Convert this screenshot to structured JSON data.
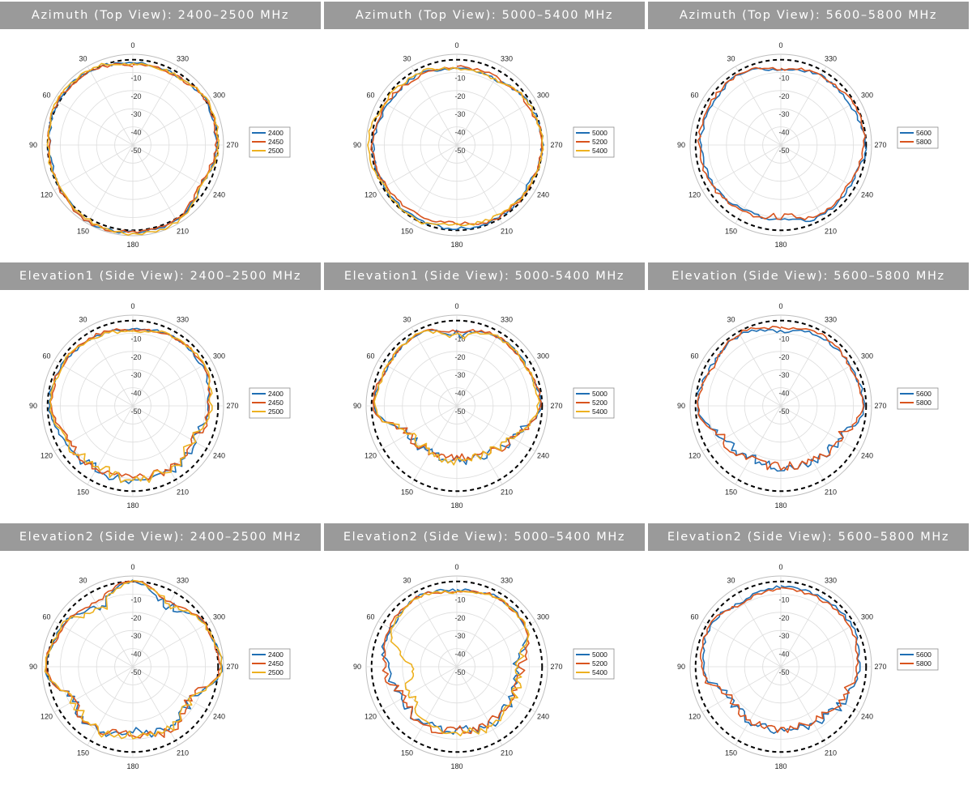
{
  "colors": {
    "accent_blue": "#1f6fb4",
    "accent_orange": "#d9541e",
    "accent_yellow": "#edb120",
    "reference": "#000000",
    "banner": "#9a9a9a",
    "grid": "#dddddd"
  },
  "angle_labels": [
    "0",
    "30",
    "60",
    "90",
    "120",
    "150",
    "180",
    "210",
    "240",
    "270",
    "300",
    "330"
  ],
  "radial_labels": [
    "-10",
    "-20",
    "-30",
    "-40",
    "-50"
  ],
  "chart_data": [
    {
      "type": "polar",
      "title": "Azimuth (Top View): 2400–2500 MHz",
      "rlim": [
        -50,
        0
      ],
      "angle_step_deg": 30,
      "grid": true,
      "legend_position": "right",
      "reference_circle_db": -3,
      "angles_deg": [
        0,
        30,
        60,
        90,
        120,
        150,
        180,
        210,
        240,
        270,
        300,
        330
      ],
      "series": [
        {
          "name": "2400",
          "values": [
            -5,
            -3,
            -2,
            -4,
            -4,
            -1,
            -2,
            -2,
            -6,
            -4,
            -3,
            -5
          ]
        },
        {
          "name": "2450",
          "values": [
            -6,
            -3,
            -2,
            -4,
            -3,
            -1,
            -2,
            -3,
            -7,
            -4,
            -3,
            -5
          ]
        },
        {
          "name": "2500",
          "values": [
            -5,
            -2,
            -2,
            -3,
            -3,
            -2,
            -1,
            -1,
            -6,
            -3,
            -2,
            -5
          ]
        }
      ]
    },
    {
      "type": "polar",
      "title": "Azimuth (Top View): 5000–5400 MHz",
      "rlim": [
        -50,
        0
      ],
      "angle_step_deg": 30,
      "grid": true,
      "legend_position": "right",
      "reference_circle_db": -3,
      "angles_deg": [
        0,
        30,
        60,
        90,
        120,
        150,
        180,
        210,
        240,
        270,
        300,
        330
      ],
      "series": [
        {
          "name": "5000",
          "values": [
            -8,
            -6,
            -6,
            -4,
            -4,
            -4,
            -4,
            -4,
            -5,
            -3,
            -4,
            -8
          ]
        },
        {
          "name": "5200",
          "values": [
            -7,
            -7,
            -5,
            -3,
            -5,
            -6,
            -7,
            -4,
            -4,
            -3,
            -5,
            -7
          ]
        },
        {
          "name": "5400",
          "values": [
            -8,
            -5,
            -4,
            -1,
            -4,
            -3,
            -6,
            -5,
            -4,
            -3,
            -4,
            -8
          ]
        }
      ]
    },
    {
      "type": "polar",
      "title": "Azimuth (Top View): 5600–5800 MHz",
      "rlim": [
        -50,
        0
      ],
      "angle_step_deg": 30,
      "grid": true,
      "legend_position": "right",
      "reference_circle_db": -3,
      "angles_deg": [
        0,
        30,
        60,
        90,
        120,
        150,
        180,
        210,
        240,
        270,
        300,
        330
      ],
      "series": [
        {
          "name": "5600",
          "values": [
            -9,
            -5,
            -6,
            -6,
            -7,
            -9,
            -9,
            -5,
            -6,
            -3,
            -6,
            -6
          ]
        },
        {
          "name": "5800",
          "values": [
            -8,
            -5,
            -5,
            -5,
            -6,
            -8,
            -10,
            -6,
            -7,
            -4,
            -4,
            -6
          ]
        }
      ]
    },
    {
      "type": "polar",
      "title": "Elevation1 (Side View): 2400–2500 MHz",
      "rlim": [
        -50,
        0
      ],
      "angle_step_deg": 30,
      "grid": true,
      "legend_position": "right",
      "reference_circle_db": -3,
      "angles_deg": [
        0,
        30,
        60,
        90,
        120,
        150,
        180,
        210,
        240,
        270,
        300,
        330
      ],
      "series": [
        {
          "name": "2400",
          "values": [
            -8,
            -7,
            -5,
            -4,
            -8,
            -10,
            -9,
            -9,
            -11,
            -8,
            -6,
            -6
          ]
        },
        {
          "name": "2450",
          "values": [
            -8,
            -6,
            -5,
            -5,
            -10,
            -11,
            -10,
            -10,
            -12,
            -8,
            -5,
            -6
          ]
        },
        {
          "name": "2500",
          "values": [
            -9,
            -7,
            -5,
            -5,
            -9,
            -12,
            -9,
            -10,
            -12,
            -7,
            -5,
            -6
          ]
        }
      ]
    },
    {
      "type": "polar",
      "title": "Elevation1 (Side View): 5000-5400 MHz",
      "rlim": [
        -50,
        0
      ],
      "angle_step_deg": 30,
      "grid": true,
      "legend_position": "right",
      "reference_circle_db": -3,
      "angles_deg": [
        0,
        30,
        60,
        90,
        120,
        150,
        180,
        210,
        240,
        270,
        300,
        330
      ],
      "series": [
        {
          "name": "5000",
          "values": [
            -10,
            -5,
            -6,
            -4,
            -20,
            -20,
            -20,
            -19,
            -15,
            -4,
            -6,
            -6
          ]
        },
        {
          "name": "5200",
          "values": [
            -9,
            -5,
            -6,
            -4,
            -19,
            -21,
            -21,
            -19,
            -14,
            -4,
            -6,
            -6
          ]
        },
        {
          "name": "5400",
          "values": [
            -11,
            -5,
            -6,
            -5,
            -21,
            -21,
            -20,
            -20,
            -15,
            -5,
            -6,
            -6
          ]
        }
      ]
    },
    {
      "type": "polar",
      "title": "Elevation (Side View): 5600–5800 MHz",
      "rlim": [
        -50,
        0
      ],
      "angle_step_deg": 30,
      "grid": true,
      "legend_position": "right",
      "reference_circle_db": -3,
      "angles_deg": [
        0,
        30,
        60,
        90,
        120,
        150,
        180,
        210,
        240,
        270,
        300,
        330
      ],
      "series": [
        {
          "name": "5600",
          "values": [
            -9,
            -5,
            -6,
            -4,
            -14,
            -17,
            -16,
            -15,
            -13,
            -4,
            -6,
            -6
          ]
        },
        {
          "name": "5800",
          "values": [
            -7,
            -4,
            -7,
            -4,
            -13,
            -16,
            -17,
            -15,
            -14,
            -5,
            -6,
            -5
          ]
        }
      ]
    },
    {
      "type": "polar",
      "title": "Elevation2 (Side View): 2400–2500 MHz",
      "rlim": [
        -50,
        0
      ],
      "angle_step_deg": 30,
      "grid": true,
      "legend_position": "right",
      "reference_circle_db": -3,
      "angles_deg": [
        0,
        30,
        60,
        90,
        120,
        150,
        180,
        210,
        240,
        270,
        300,
        330
      ],
      "series": [
        {
          "name": "2400",
          "values": [
            -3,
            -12,
            -5,
            -2,
            -12,
            -10,
            -14,
            -11,
            -13,
            -1,
            -4,
            -11
          ]
        },
        {
          "name": "2450",
          "values": [
            -3,
            -9,
            -6,
            -2,
            -12,
            -10,
            -13,
            -9,
            -14,
            -2,
            -4,
            -9
          ]
        },
        {
          "name": "2500",
          "values": [
            -3,
            -14,
            -5,
            -2,
            -12,
            -10,
            -12,
            -10,
            -14,
            -1,
            -4,
            -10
          ]
        }
      ]
    },
    {
      "type": "polar",
      "title": "Elevation2 (Side View): 5000–5400 MHz",
      "rlim": [
        -50,
        0
      ],
      "angle_step_deg": 30,
      "grid": true,
      "legend_position": "right",
      "reference_circle_db": -3,
      "angles_deg": [
        0,
        30,
        60,
        90,
        120,
        150,
        180,
        210,
        240,
        270,
        300,
        330
      ],
      "series": [
        {
          "name": "5000",
          "values": [
            -8,
            -6,
            -8,
            -11,
            -15,
            -14,
            -15,
            -13,
            -15,
            -17,
            -6,
            -6
          ]
        },
        {
          "name": "5200",
          "values": [
            -9,
            -6,
            -7,
            -10,
            -16,
            -13,
            -15,
            -14,
            -15,
            -14,
            -6,
            -6
          ]
        },
        {
          "name": "5400",
          "values": [
            -9,
            -6,
            -8,
            -25,
            -21,
            -15,
            -14,
            -12,
            -14,
            -16,
            -6,
            -6
          ]
        }
      ]
    },
    {
      "type": "polar",
      "title": "Elevation2 (Side View): 5600–5800 MHz",
      "rlim": [
        -50,
        0
      ],
      "angle_step_deg": 30,
      "grid": true,
      "legend_position": "right",
      "reference_circle_db": -3,
      "angles_deg": [
        0,
        30,
        60,
        90,
        120,
        150,
        180,
        210,
        240,
        270,
        300,
        330
      ],
      "series": [
        {
          "name": "5600",
          "values": [
            -6,
            -8,
            -5,
            -7,
            -16,
            -16,
            -14,
            -14,
            -11,
            -7,
            -5,
            -6
          ]
        },
        {
          "name": "5800",
          "values": [
            -7,
            -9,
            -5,
            -6,
            -17,
            -17,
            -15,
            -15,
            -13,
            -8,
            -6,
            -7
          ]
        }
      ]
    }
  ]
}
